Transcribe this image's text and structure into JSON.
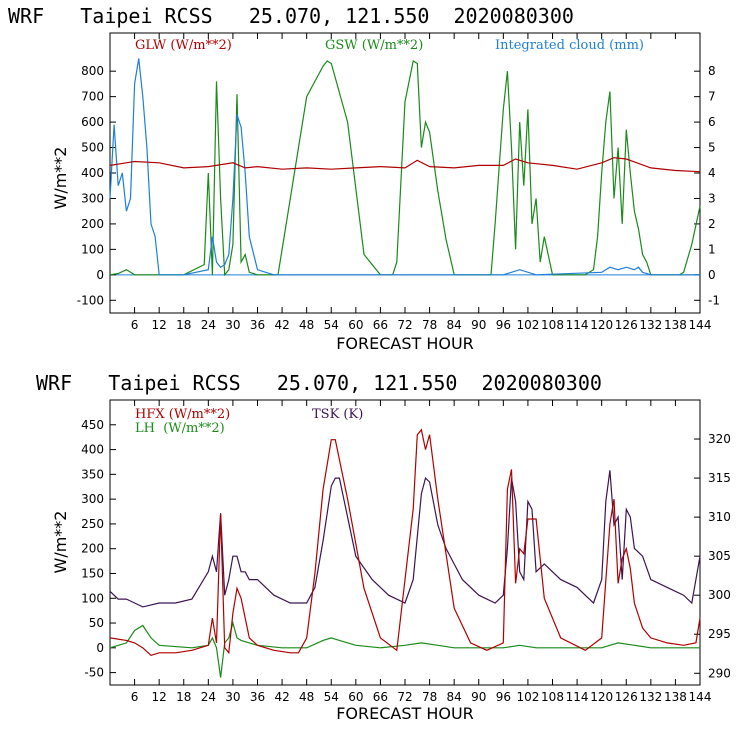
{
  "page": {
    "top_title": "WRF   Taipei RCSS   25.070, 121.550  2020080300",
    "bottom_title": "WRF   Taipei RCSS   25.070, 121.550  2020080300"
  },
  "chart_data": [
    {
      "type": "line",
      "xlabel": "FORECAST HOUR",
      "ylabel": "W/m**2",
      "xlim": [
        0,
        144
      ],
      "ylim": [
        -150,
        950
      ],
      "y2lim": [
        -1.5,
        9.5
      ],
      "x_ticks": [
        "6",
        "12",
        "18",
        "24",
        "30",
        "36",
        "42",
        "48",
        "54",
        "60",
        "66",
        "72",
        "78",
        "84",
        "90",
        "96",
        "102",
        "108",
        "114",
        "120",
        "126",
        "132",
        "138",
        "144"
      ],
      "y_ticks": [
        "800",
        "700",
        "600",
        "500",
        "400",
        "300",
        "200",
        "100",
        "0",
        "-100"
      ],
      "y2_ticks": [
        "8",
        "7",
        "6",
        "5",
        "4",
        "3",
        "2",
        "1",
        "0",
        "-1"
      ],
      "legend": {
        "glw": "GLW (W/m**2)",
        "gsw": "GSW (W/m**2)",
        "cloud": "Integrated cloud (mm)"
      },
      "colors": {
        "glw": "#b00000",
        "gsw": "#1a8a1a",
        "cloud": "#1e7fd8",
        "zero": "#1e7fd8"
      },
      "series": [
        {
          "name": "GLW",
          "axis": "left",
          "x": [
            0,
            6,
            12,
            18,
            24,
            30,
            33,
            36,
            42,
            48,
            54,
            60,
            66,
            72,
            75,
            78,
            84,
            90,
            96,
            99,
            102,
            108,
            114,
            120,
            123,
            126,
            132,
            138,
            144
          ],
          "values": [
            430,
            445,
            440,
            420,
            425,
            440,
            420,
            425,
            415,
            420,
            415,
            420,
            425,
            420,
            450,
            425,
            420,
            430,
            430,
            455,
            440,
            430,
            415,
            440,
            460,
            455,
            420,
            410,
            405
          ]
        },
        {
          "name": "GSW",
          "axis": "left",
          "x": [
            0,
            2,
            4,
            6,
            18,
            23,
            24,
            25,
            26,
            27,
            28,
            29,
            30,
            31,
            32,
            33,
            34,
            36,
            41,
            44,
            48,
            52,
            53,
            54,
            58,
            62,
            66,
            69,
            70,
            72,
            74,
            75,
            76,
            77,
            78,
            80,
            82,
            84,
            88,
            93,
            94,
            96,
            97,
            98,
            99,
            100,
            101,
            102,
            103,
            104,
            105,
            106,
            108,
            116,
            118,
            119,
            120,
            121,
            122,
            123,
            124,
            125,
            126,
            127,
            128,
            129,
            130,
            131,
            132,
            139,
            140,
            142,
            144
          ],
          "values": [
            0,
            5,
            20,
            0,
            0,
            40,
            400,
            0,
            760,
            300,
            0,
            20,
            120,
            710,
            50,
            80,
            10,
            0,
            0,
            300,
            700,
            820,
            840,
            830,
            600,
            80,
            0,
            0,
            50,
            680,
            840,
            830,
            500,
            600,
            560,
            330,
            140,
            0,
            0,
            0,
            200,
            650,
            800,
            500,
            100,
            600,
            350,
            650,
            200,
            300,
            50,
            150,
            0,
            0,
            20,
            150,
            400,
            600,
            720,
            300,
            500,
            200,
            570,
            400,
            250,
            180,
            80,
            50,
            0,
            0,
            10,
            120,
            270
          ]
        },
        {
          "name": "Integrated cloud",
          "axis": "right",
          "x": [
            0,
            1,
            2,
            3,
            4,
            5,
            6,
            7,
            8,
            9,
            10,
            11,
            12,
            18,
            24,
            25,
            26,
            27,
            28,
            29,
            30,
            31,
            32,
            33,
            34,
            36,
            38,
            40,
            48,
            60,
            96,
            100,
            104,
            120,
            121,
            122,
            124,
            126,
            128,
            129,
            130,
            132,
            144
          ],
          "values": [
            3,
            5.9,
            3.5,
            4,
            2.5,
            3,
            7.5,
            8.5,
            7,
            5,
            2,
            1.5,
            0,
            0,
            0.2,
            1.5,
            0.5,
            0.3,
            0.4,
            0.8,
            3,
            6.3,
            5.8,
            4,
            1.5,
            0.2,
            0.1,
            0,
            0,
            0,
            0,
            0.2,
            0,
            0.1,
            0.2,
            0.3,
            0.2,
            0.3,
            0.2,
            0.3,
            0.1,
            0,
            0
          ]
        }
      ]
    },
    {
      "type": "line",
      "xlabel": "FORECAST HOUR",
      "ylabel": "W/m**2",
      "xlim": [
        0,
        144
      ],
      "ylim": [
        -75,
        500
      ],
      "y2lim": [
        288.5,
        325
      ],
      "x_ticks": [
        "6",
        "12",
        "18",
        "24",
        "30",
        "36",
        "42",
        "48",
        "54",
        "60",
        "66",
        "72",
        "78",
        "84",
        "90",
        "96",
        "102",
        "108",
        "114",
        "120",
        "126",
        "132",
        "138",
        "144"
      ],
      "y_ticks": [
        "450",
        "400",
        "350",
        "300",
        "250",
        "200",
        "150",
        "100",
        "50",
        "0",
        "-50"
      ],
      "y2_ticks": [
        "320",
        "315",
        "310",
        "305",
        "300",
        "295",
        "290"
      ],
      "legend": {
        "hfx": "HFX (W/m**2)",
        "lh": "LH  (W/m**2)",
        "tsk": "TSK (K)"
      },
      "colors": {
        "hfx": "#b00000",
        "lh": "#1a8a1a",
        "tsk": "#3c1450"
      },
      "series": [
        {
          "name": "HFX",
          "axis": "left",
          "x": [
            0,
            4,
            6,
            8,
            10,
            12,
            16,
            20,
            24,
            25,
            26,
            27,
            28,
            29,
            30,
            31,
            32,
            34,
            36,
            40,
            44,
            46,
            48,
            50,
            52,
            54,
            55,
            58,
            62,
            66,
            70,
            74,
            75,
            76,
            77,
            78,
            80,
            84,
            88,
            92,
            96,
            97,
            98,
            99,
            100,
            101,
            102,
            104,
            106,
            110,
            116,
            120,
            122,
            123,
            124,
            125,
            126,
            127,
            128,
            130,
            132,
            136,
            140,
            143,
            144
          ],
          "values": [
            20,
            15,
            10,
            0,
            -15,
            -10,
            -10,
            -5,
            5,
            60,
            10,
            270,
            0,
            -10,
            70,
            120,
            100,
            20,
            5,
            -5,
            -10,
            -10,
            20,
            150,
            320,
            420,
            420,
            300,
            120,
            20,
            -5,
            280,
            430,
            440,
            400,
            430,
            300,
            80,
            10,
            -5,
            10,
            320,
            360,
            130,
            200,
            190,
            260,
            260,
            100,
            20,
            -5,
            20,
            250,
            300,
            130,
            180,
            200,
            160,
            90,
            40,
            20,
            10,
            5,
            10,
            60
          ]
        },
        {
          "name": "LH",
          "axis": "left",
          "x": [
            0,
            4,
            6,
            8,
            10,
            12,
            20,
            24,
            25,
            26,
            27,
            28,
            29,
            30,
            31,
            32,
            34,
            36,
            42,
            48,
            52,
            54,
            56,
            60,
            66,
            72,
            76,
            80,
            84,
            96,
            100,
            104,
            120,
            124,
            128,
            132,
            144
          ],
          "values": [
            0,
            10,
            35,
            45,
            20,
            5,
            0,
            5,
            20,
            0,
            -60,
            10,
            20,
            50,
            20,
            15,
            10,
            5,
            0,
            0,
            15,
            20,
            15,
            5,
            0,
            5,
            10,
            5,
            0,
            0,
            5,
            0,
            0,
            10,
            5,
            0,
            0
          ]
        },
        {
          "name": "TSK",
          "axis": "right",
          "x": [
            0,
            2,
            4,
            8,
            12,
            16,
            20,
            24,
            25,
            26,
            27,
            28,
            29,
            30,
            31,
            32,
            33,
            34,
            36,
            40,
            44,
            48,
            50,
            52,
            54,
            55,
            56,
            58,
            60,
            64,
            68,
            72,
            74,
            76,
            77,
            78,
            80,
            82,
            86,
            90,
            94,
            96,
            97,
            98,
            99,
            100,
            101,
            102,
            103,
            104,
            106,
            110,
            114,
            118,
            120,
            121,
            122,
            123,
            124,
            125,
            126,
            127,
            128,
            130,
            132,
            136,
            140,
            142,
            144
          ],
          "values": [
            300.5,
            299.5,
            299.5,
            298.5,
            299,
            299,
            299.5,
            303,
            305,
            303,
            310.5,
            300,
            302,
            305,
            305,
            303,
            303,
            302,
            302,
            300,
            299,
            299,
            301,
            307,
            314,
            315,
            315,
            310,
            305,
            302,
            300,
            299,
            302,
            313,
            315,
            314.5,
            309,
            306,
            302,
            300,
            299,
            300,
            306,
            315,
            312,
            303,
            302,
            312,
            311,
            303,
            304,
            302,
            301,
            299,
            302,
            312,
            316,
            309,
            310,
            302,
            311,
            310,
            306,
            305,
            302,
            301,
            300,
            299,
            305
          ]
        }
      ]
    }
  ]
}
